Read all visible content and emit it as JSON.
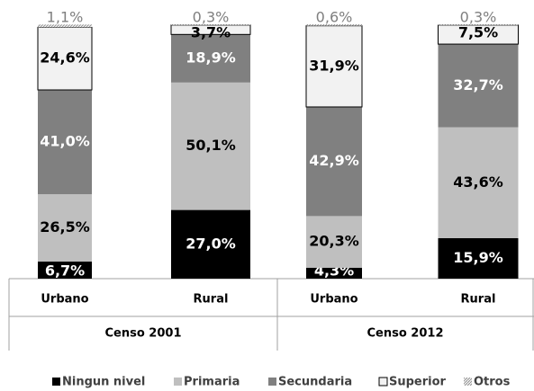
{
  "chart_data": {
    "type": "stacked_bar",
    "categories": [
      "Urbano",
      "Rural",
      "Urbano",
      "Rural"
    ],
    "groups": [
      "Censo 2001",
      "Censo 2012"
    ],
    "ylim": [
      0,
      100
    ],
    "series": [
      {
        "name": "Ningun nivel",
        "color": "#000000",
        "label_color": "#ffffff",
        "values": [
          6.7,
          27.0,
          4.3,
          15.9
        ],
        "value_labels": [
          "6,7%",
          "27,0%",
          "4,3%",
          "15,9%"
        ]
      },
      {
        "name": "Primaria",
        "color": "#bfbfbf",
        "label_color": "#000000",
        "values": [
          26.5,
          50.1,
          20.3,
          43.6
        ],
        "value_labels": [
          "26,5%",
          "50,1%",
          "20,3%",
          "43,6%"
        ]
      },
      {
        "name": "Secundaria",
        "color": "#808080",
        "label_color": "#ffffff",
        "values": [
          41.0,
          18.9,
          42.9,
          32.7
        ],
        "value_labels": [
          "41,0%",
          "18,9%",
          "42,9%",
          "32,7%"
        ]
      },
      {
        "name": "Superior",
        "color": "#f2f2f2",
        "label_color": "#000000",
        "values": [
          24.6,
          3.7,
          31.9,
          7.5
        ],
        "value_labels": [
          "24,6%",
          "3,7%",
          "31,9%",
          "7,5%"
        ]
      },
      {
        "name": "Otros",
        "color": "#d9d9d9",
        "label_color": "#7f7f7f",
        "values": [
          1.1,
          0.3,
          0.6,
          0.3
        ],
        "value_labels": [
          "1,1%",
          "0,3%",
          "0,6%",
          "0,3%"
        ]
      }
    ]
  }
}
